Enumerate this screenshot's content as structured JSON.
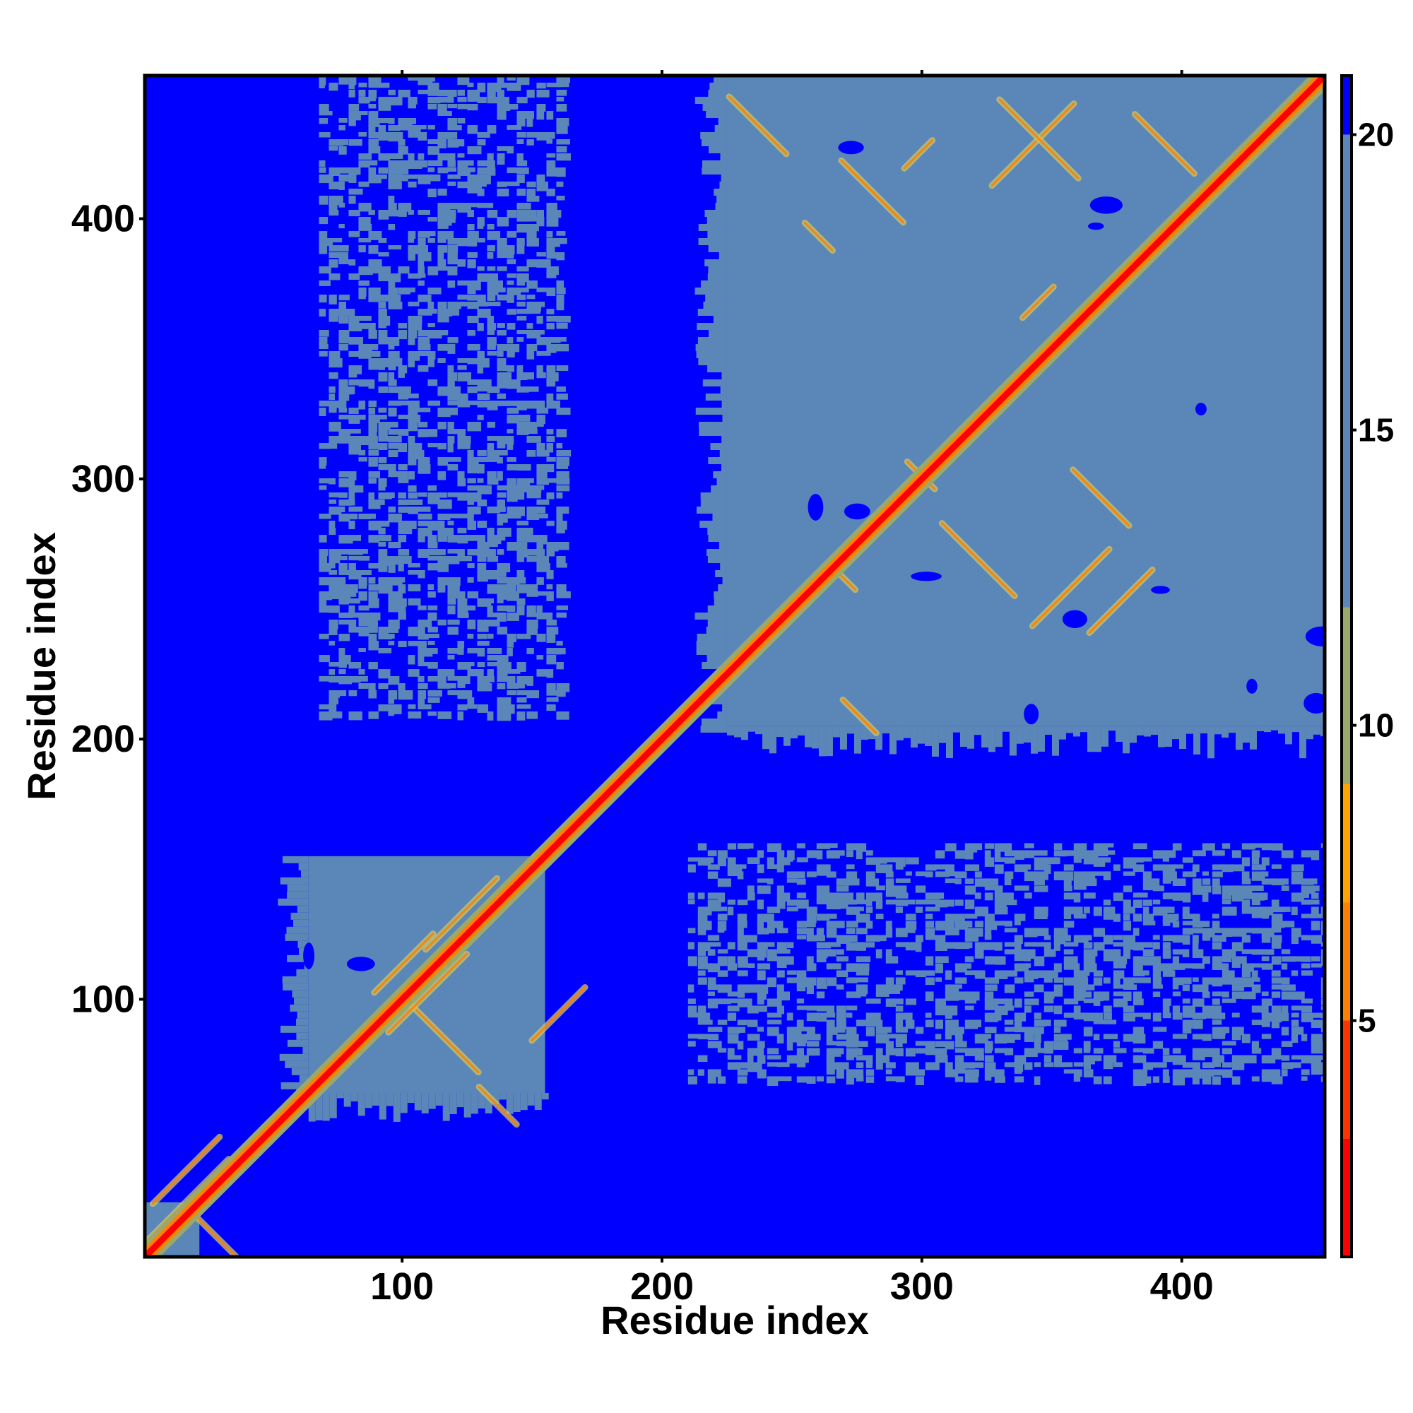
{
  "chart_data": {
    "type": "heatmap",
    "title": "",
    "xlabel": "Residue index",
    "ylabel": "Residue index",
    "n_residues": 455,
    "xlim": [
      1,
      455
    ],
    "ylim": [
      1,
      455
    ],
    "x_ticks": [
      100,
      200,
      300,
      400
    ],
    "y_ticks": [
      100,
      200,
      300,
      400
    ],
    "grid": false,
    "legend": "right colorbar",
    "colorbar": {
      "range": [
        1,
        21
      ],
      "ticks": [
        5,
        10,
        15,
        20
      ],
      "bands": [
        {
          "from": 1,
          "to": 3,
          "color": "#ff0000"
        },
        {
          "from": 3,
          "to": 5,
          "color": "#ff3300"
        },
        {
          "from": 5,
          "to": 7,
          "color": "#ff8000"
        },
        {
          "from": 7,
          "to": 9,
          "color": "#ffa500"
        },
        {
          "from": 9,
          "to": 12,
          "color": "#9aa86a"
        },
        {
          "from": 12,
          "to": 20,
          "color": "#5b86b8"
        },
        {
          "from": 20,
          "to": 21,
          "color": "#0000ff"
        }
      ]
    },
    "diagonal": {
      "from": [
        1,
        1
      ],
      "to": [
        455,
        455
      ],
      "core_color": "#ff0000",
      "halo_color": "#ff8000"
    },
    "contact_regions": [
      {
        "x": [
          1,
          22
        ],
        "y": [
          1,
          22
        ],
        "kind": "domain",
        "color": "#5b86b8"
      },
      {
        "x": [
          64,
          155
        ],
        "y": [
          64,
          155
        ],
        "kind": "domain",
        "color": "#5b86b8"
      },
      {
        "x": [
          225,
          455
        ],
        "y": [
          205,
          455
        ],
        "kind": "domain",
        "color": "#5b86b8"
      },
      {
        "x": [
          68,
          160
        ],
        "y": [
          210,
          455
        ],
        "kind": "speckle",
        "color": "#5b86b8"
      },
      {
        "x": [
          210,
          455
        ],
        "y": [
          68,
          160
        ],
        "kind": "speckle",
        "color": "#5b86b8"
      }
    ]
  }
}
